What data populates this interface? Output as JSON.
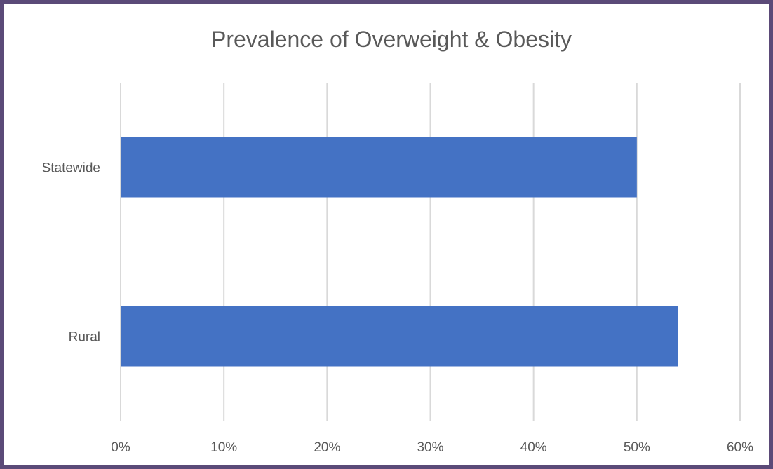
{
  "chart_data": {
    "type": "bar",
    "orientation": "horizontal",
    "title": "Prevalence of Overweight & Obesity",
    "categories": [
      "Statewide",
      "Rural"
    ],
    "values": [
      0.5,
      0.54
    ],
    "value_format": "percent",
    "xlim": [
      0,
      0.6
    ],
    "x_ticks": [
      {
        "value": 0.0,
        "label": "0%"
      },
      {
        "value": 0.1,
        "label": "10%"
      },
      {
        "value": 0.2,
        "label": "20%"
      },
      {
        "value": 0.3,
        "label": "30%"
      },
      {
        "value": 0.4,
        "label": "40%"
      },
      {
        "value": 0.5,
        "label": "50%"
      },
      {
        "value": 0.6,
        "label": "60%"
      }
    ],
    "grid": true,
    "legend": "none",
    "bar_color": "#4472c4"
  }
}
